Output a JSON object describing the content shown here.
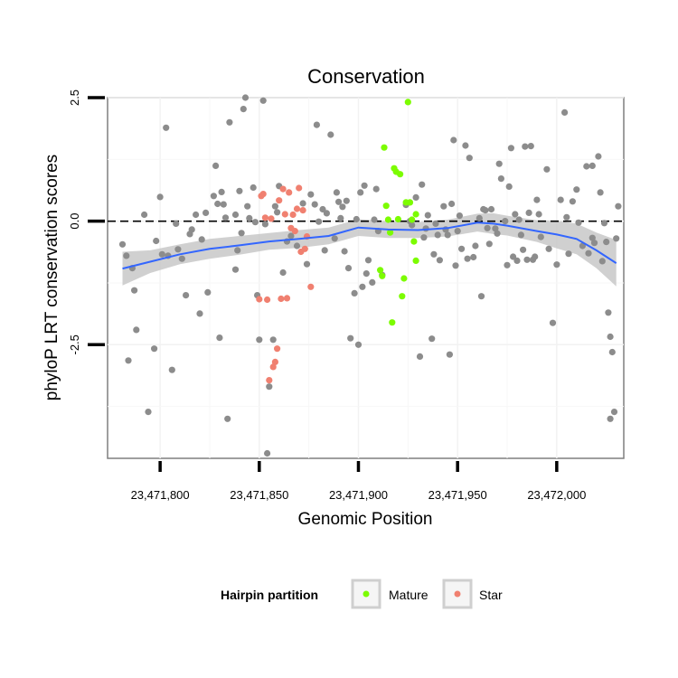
{
  "chart_data": {
    "type": "scatter",
    "title": "Conservation",
    "xlabel": "Genomic Position",
    "ylabel": "phyloP LRT conservation scores",
    "x_ticks": [
      23471800,
      23471850,
      23471900,
      23471950,
      23472000
    ],
    "x_tick_labels": [
      "23,471,800",
      "23,471,850",
      "23,471,900",
      "23,471,950",
      "23,472,000"
    ],
    "y_ticks": [
      2.5,
      0.0,
      -2.5
    ],
    "y_tick_labels": [
      "2.5",
      "0.0",
      "-2.5"
    ],
    "xlim": [
      23471773.5,
      23472033.8
    ],
    "ylim": [
      -4.8,
      2.5
    ],
    "reference_line": {
      "y": 0.0,
      "style": "dashed"
    },
    "grid": true,
    "legend": {
      "title": "Hairpin partition",
      "position": "bottom",
      "entries": [
        {
          "name": "Mature",
          "color": "#7cfc00"
        },
        {
          "name": "Star",
          "color": "#f08070"
        }
      ]
    },
    "colors": {
      "other": "#8c8c8c",
      "mature": "#7cfc00",
      "star": "#f08070",
      "smooth": "#3366ff",
      "band": "#c8c8c8"
    },
    "series": [
      {
        "name": "Other",
        "points": [
          [
            23471781,
            -0.47
          ],
          [
            23471783,
            -0.7
          ],
          [
            23471784,
            -2.82
          ],
          [
            23471786,
            -0.95
          ],
          [
            23471787,
            -1.4
          ],
          [
            23471788,
            -2.2
          ],
          [
            23471792,
            0.13
          ],
          [
            23471794,
            -3.86
          ],
          [
            23471797,
            -2.58
          ],
          [
            23471798,
            -0.4
          ],
          [
            23471800,
            0.49
          ],
          [
            23471801,
            -0.67
          ],
          [
            23471803,
            1.89
          ],
          [
            23471804,
            -0.7
          ],
          [
            23471806,
            -3.01
          ],
          [
            23471808,
            -0.05
          ],
          [
            23471809,
            -0.57
          ],
          [
            23471811,
            -0.76
          ],
          [
            23471813,
            -1.5
          ],
          [
            23471815,
            -0.26
          ],
          [
            23471816,
            -0.17
          ],
          [
            23471818,
            0.13
          ],
          [
            23471820,
            -1.87
          ],
          [
            23471821,
            -0.37
          ],
          [
            23471823,
            0.17
          ],
          [
            23471824,
            -1.44
          ],
          [
            23471827,
            0.51
          ],
          [
            23471828,
            1.12
          ],
          [
            23471829,
            0.35
          ],
          [
            23471830,
            -2.36
          ],
          [
            23471831,
            0.59
          ],
          [
            23471832,
            0.34
          ],
          [
            23471833,
            0.07
          ],
          [
            23471834,
            -4.0
          ],
          [
            23471835,
            2.0
          ],
          [
            23471838,
            0.13
          ],
          [
            23471838,
            -0.98
          ],
          [
            23471839,
            -0.59
          ],
          [
            23471840,
            0.61
          ],
          [
            23471841,
            -0.24
          ],
          [
            23471842,
            2.27
          ],
          [
            23471843,
            2.5
          ],
          [
            23471844,
            0.3
          ],
          [
            23471845,
            0.06
          ],
          [
            23471847,
            0.68
          ],
          [
            23471848,
            -0.02
          ],
          [
            23471849,
            -1.5
          ],
          [
            23471850,
            -2.4
          ],
          [
            23471852,
            2.44
          ],
          [
            23471853,
            -0.06
          ],
          [
            23471854,
            -4.7
          ],
          [
            23471855,
            -3.35
          ],
          [
            23471857,
            -2.4
          ],
          [
            23471858,
            0.3
          ],
          [
            23471859,
            0.18
          ],
          [
            23471860,
            0.71
          ],
          [
            23471862,
            -1.04
          ],
          [
            23471864,
            -0.41
          ],
          [
            23471866,
            -0.3
          ],
          [
            23471869,
            -0.5
          ],
          [
            23471872,
            0.36
          ],
          [
            23471874,
            -0.87
          ],
          [
            23471876,
            0.54
          ],
          [
            23471878,
            0.34
          ],
          [
            23471879,
            1.95
          ],
          [
            23471880,
            -0.01
          ],
          [
            23471882,
            0.24
          ],
          [
            23471883,
            -0.59
          ],
          [
            23471884,
            0.16
          ],
          [
            23471886,
            1.75
          ],
          [
            23471888,
            -0.35
          ],
          [
            23471889,
            0.58
          ],
          [
            23471890,
            0.39
          ],
          [
            23471891,
            0.06
          ],
          [
            23471892,
            0.29
          ],
          [
            23471893,
            -0.61
          ],
          [
            23471894,
            0.41
          ],
          [
            23471895,
            -0.95
          ],
          [
            23471896,
            -2.37
          ],
          [
            23471898,
            -1.46
          ],
          [
            23471899,
            0.04
          ],
          [
            23471900,
            -2.5
          ],
          [
            23471901,
            0.58
          ],
          [
            23471902,
            -1.33
          ],
          [
            23471903,
            0.72
          ],
          [
            23471904,
            -1.06
          ],
          [
            23471905,
            -0.79
          ],
          [
            23471907,
            -1.24
          ],
          [
            23471908,
            0.03
          ],
          [
            23471909,
            0.65
          ],
          [
            23471910,
            -0.2
          ],
          [
            23471912,
            -1.09
          ],
          [
            23471924,
            0.33
          ],
          [
            23471926,
            0.0
          ],
          [
            23471927,
            -0.08
          ],
          [
            23471929,
            0.48
          ],
          [
            23471931,
            -2.74
          ],
          [
            23471932,
            0.74
          ],
          [
            23471933,
            -0.33
          ],
          [
            23471934,
            -0.15
          ],
          [
            23471935,
            0.12
          ],
          [
            23471937,
            -2.38
          ],
          [
            23471938,
            -0.67
          ],
          [
            23471939,
            -0.05
          ],
          [
            23471940,
            -0.28
          ],
          [
            23471941,
            -0.79
          ],
          [
            23471943,
            0.3
          ],
          [
            23471944,
            -0.17
          ],
          [
            23471945,
            -0.28
          ],
          [
            23471946,
            -2.7
          ],
          [
            23471947,
            0.35
          ],
          [
            23471948,
            1.64
          ],
          [
            23471949,
            -0.9
          ],
          [
            23471950,
            -0.2
          ],
          [
            23471951,
            0.11
          ],
          [
            23471952,
            -0.56
          ],
          [
            23471954,
            1.53
          ],
          [
            23471955,
            -0.76
          ],
          [
            23471956,
            1.28
          ],
          [
            23471958,
            -0.73
          ],
          [
            23471959,
            -0.5
          ],
          [
            23471961,
            0.06
          ],
          [
            23471962,
            -1.52
          ],
          [
            23471963,
            0.24
          ],
          [
            23471964,
            0.22
          ],
          [
            23471965,
            -0.14
          ],
          [
            23471966,
            -0.46
          ],
          [
            23471967,
            0.24
          ],
          [
            23471969,
            -0.15
          ],
          [
            23471970,
            -0.25
          ],
          [
            23471971,
            1.16
          ],
          [
            23471972,
            0.86
          ],
          [
            23471974,
            0.0
          ],
          [
            23471975,
            -0.89
          ],
          [
            23471976,
            0.7
          ],
          [
            23471977,
            1.48
          ],
          [
            23471978,
            -0.72
          ],
          [
            23471979,
            0.14
          ],
          [
            23471980,
            -0.8
          ],
          [
            23471981,
            0.03
          ],
          [
            23471982,
            -0.28
          ],
          [
            23471983,
            -0.58
          ],
          [
            23471984,
            1.51
          ],
          [
            23471985,
            -0.78
          ],
          [
            23471986,
            0.17
          ],
          [
            23471987,
            1.52
          ],
          [
            23471988,
            -0.78
          ],
          [
            23471989,
            -0.72
          ],
          [
            23471990,
            0.43
          ],
          [
            23471991,
            0.14
          ],
          [
            23471992,
            -0.32
          ],
          [
            23471995,
            1.05
          ],
          [
            23471996,
            -0.56
          ],
          [
            23471998,
            -2.06
          ],
          [
            23472000,
            -0.88
          ],
          [
            23472002,
            0.43
          ],
          [
            23472004,
            2.2
          ],
          [
            23472005,
            0.08
          ],
          [
            23472006,
            -0.66
          ],
          [
            23472008,
            0.4
          ],
          [
            23472010,
            0.64
          ],
          [
            23472011,
            -0.03
          ],
          [
            23472013,
            -0.5
          ],
          [
            23472015,
            1.11
          ],
          [
            23472016,
            -0.65
          ],
          [
            23472018,
            1.12
          ],
          [
            23472018,
            -0.34
          ],
          [
            23472019,
            -0.44
          ],
          [
            23472021,
            1.31
          ],
          [
            23472022,
            0.58
          ],
          [
            23472023,
            -0.81
          ],
          [
            23472024,
            -0.04
          ],
          [
            23472025,
            -0.42
          ],
          [
            23472026,
            -1.85
          ],
          [
            23472027,
            -2.34
          ],
          [
            23472027,
            -4.0
          ],
          [
            23472028,
            -2.65
          ],
          [
            23472029,
            -3.86
          ],
          [
            23472030,
            -0.35
          ],
          [
            23472031,
            0.3
          ]
        ]
      },
      {
        "name": "Mature",
        "points": [
          [
            23471911,
            -0.99
          ],
          [
            23471912,
            -1.11
          ],
          [
            23471913,
            1.49
          ],
          [
            23471914,
            0.31
          ],
          [
            23471915,
            0.03
          ],
          [
            23471916,
            -0.23
          ],
          [
            23471917,
            -2.05
          ],
          [
            23471918,
            1.07
          ],
          [
            23471919,
            1.0
          ],
          [
            23471920,
            0.04
          ],
          [
            23471921,
            0.95
          ],
          [
            23471922,
            -1.52
          ],
          [
            23471923,
            -1.16
          ],
          [
            23471924,
            0.38
          ],
          [
            23471925,
            2.41
          ],
          [
            23471926,
            0.38
          ],
          [
            23471927,
            0.03
          ],
          [
            23471928,
            -0.41
          ],
          [
            23471929,
            -0.8
          ],
          [
            23471929,
            0.14
          ]
        ]
      },
      {
        "name": "Star",
        "points": [
          [
            23471850,
            -1.58
          ],
          [
            23471851,
            0.51
          ],
          [
            23471852,
            0.55
          ],
          [
            23471853,
            0.07
          ],
          [
            23471854,
            -1.59
          ],
          [
            23471855,
            -3.22
          ],
          [
            23471856,
            0.05
          ],
          [
            23471857,
            -2.95
          ],
          [
            23471858,
            -2.85
          ],
          [
            23471859,
            -2.58
          ],
          [
            23471860,
            0.42
          ],
          [
            23471861,
            -1.57
          ],
          [
            23471862,
            0.65
          ],
          [
            23471863,
            0.14
          ],
          [
            23471864,
            -1.56
          ],
          [
            23471865,
            0.58
          ],
          [
            23471866,
            -0.14
          ],
          [
            23471867,
            0.13
          ],
          [
            23471868,
            -0.2
          ],
          [
            23471869,
            0.25
          ],
          [
            23471870,
            0.67
          ],
          [
            23471871,
            -0.62
          ],
          [
            23471872,
            0.22
          ],
          [
            23471873,
            -0.56
          ],
          [
            23471874,
            -0.31
          ],
          [
            23471876,
            -1.33
          ]
        ]
      }
    ],
    "smooth": {
      "method": "loess",
      "x": [
        23471781,
        23471795,
        23471810,
        23471825,
        23471840,
        23471855,
        23471870,
        23471885,
        23471900,
        23471915,
        23471930,
        23471945,
        23471960,
        23471968,
        23471975,
        23471990,
        23472000,
        23472010,
        23472020,
        23472030
      ],
      "y": [
        -0.96,
        -0.82,
        -0.67,
        -0.56,
        -0.49,
        -0.41,
        -0.36,
        -0.3,
        -0.13,
        -0.17,
        -0.18,
        -0.14,
        -0.03,
        -0.05,
        -0.09,
        -0.2,
        -0.27,
        -0.36,
        -0.59,
        -0.85
      ],
      "ci_lower": [
        -1.3,
        -1.05,
        -0.87,
        -0.76,
        -0.68,
        -0.58,
        -0.54,
        -0.47,
        -0.3,
        -0.34,
        -0.34,
        -0.31,
        -0.21,
        -0.26,
        -0.29,
        -0.42,
        -0.55,
        -0.67,
        -0.95,
        -1.32
      ],
      "ci_upper": [
        -0.62,
        -0.59,
        -0.47,
        -0.36,
        -0.3,
        -0.24,
        -0.18,
        -0.13,
        0.04,
        0.0,
        -0.02,
        0.03,
        0.15,
        0.16,
        0.11,
        0.02,
        0.01,
        -0.05,
        -0.23,
        -0.38
      ]
    }
  }
}
